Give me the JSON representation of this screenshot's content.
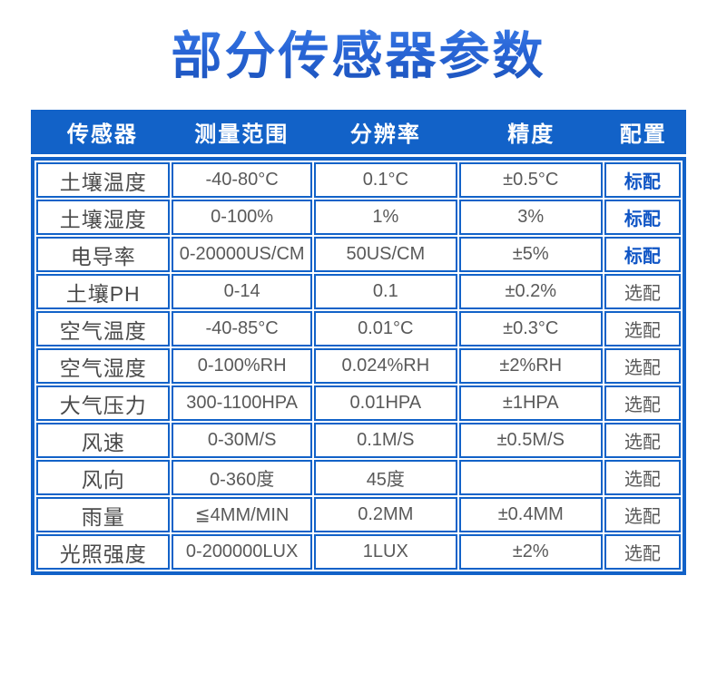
{
  "page": {
    "title": "部分传感器参数"
  },
  "colors": {
    "accent_blue": "#1262c8",
    "title_gradient_top": "#4a8df0",
    "title_gradient_bottom": "#1b52bb",
    "standard_config_blue": "#0f55c5",
    "body_text_gray": "#595959",
    "header_text": "#ffffff"
  },
  "table": {
    "columns": [
      "传感器",
      "测量范围",
      "分辨率",
      "精度",
      "配置"
    ],
    "rows": [
      {
        "sensor": "土壤温度",
        "range": "-40-80°C",
        "resolution": "0.1°C",
        "accuracy": "±0.5°C",
        "config": "标配",
        "config_highlight": true
      },
      {
        "sensor": "土壤湿度",
        "range": "0-100%",
        "resolution": "1%",
        "accuracy": "3%",
        "config": "标配",
        "config_highlight": true
      },
      {
        "sensor": "电导率",
        "range": "0-20000US/CM",
        "resolution": "50US/CM",
        "accuracy": "±5%",
        "config": "标配",
        "config_highlight": true
      },
      {
        "sensor": "土壤PH",
        "range": "0-14",
        "resolution": "0.1",
        "accuracy": "±0.2%",
        "config": "选配",
        "config_highlight": false
      },
      {
        "sensor": "空气温度",
        "range": "-40-85°C",
        "resolution": "0.01°C",
        "accuracy": "±0.3°C",
        "config": "选配",
        "config_highlight": false
      },
      {
        "sensor": "空气湿度",
        "range": "0-100%RH",
        "resolution": "0.024%RH",
        "accuracy": "±2%RH",
        "config": "选配",
        "config_highlight": false
      },
      {
        "sensor": "大气压力",
        "range": "300-1100HPA",
        "resolution": "0.01HPA",
        "accuracy": "±1HPA",
        "config": "选配",
        "config_highlight": false
      },
      {
        "sensor": "风速",
        "range": "0-30M/S",
        "resolution": "0.1M/S",
        "accuracy": "±0.5M/S",
        "config": "选配",
        "config_highlight": false
      },
      {
        "sensor": "风向",
        "range": "0-360度",
        "resolution": "45度",
        "accuracy": "",
        "config": "选配",
        "config_highlight": false
      },
      {
        "sensor": "雨量",
        "range": "≦4MM/MIN",
        "resolution": "0.2MM",
        "accuracy": "±0.4MM",
        "config": "选配",
        "config_highlight": false
      },
      {
        "sensor": "光照强度",
        "range": "0-200000LUX",
        "resolution": "1LUX",
        "accuracy": "±2%",
        "config": "选配",
        "config_highlight": false
      }
    ]
  }
}
